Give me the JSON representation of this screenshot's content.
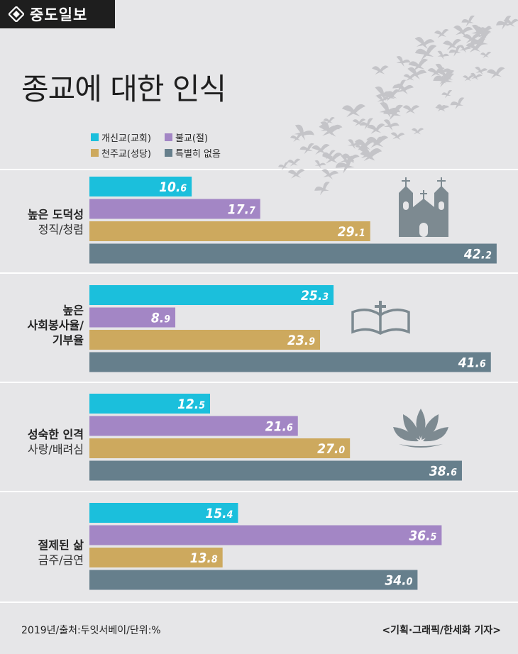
{
  "brand": {
    "logo_text": "중도일보"
  },
  "colors": {
    "protestant": "#1bbfdc",
    "buddhist": "#a386c5",
    "catholic": "#cda95e",
    "none": "#667f8c",
    "birds": "#c4c4c8",
    "icons": "#7d8a91"
  },
  "chart_data": {
    "type": "bar",
    "orientation": "horizontal",
    "title": "종교에 대한 인식",
    "legend": [
      {
        "name": "개신교(교회)",
        "color": "#1bbfdc"
      },
      {
        "name": "불교(절)",
        "color": "#a386c5"
      },
      {
        "name": "천주교(성당)",
        "color": "#cda95e"
      },
      {
        "name": "특별히 없음",
        "color": "#667f8c"
      }
    ],
    "categories": [
      {
        "main": [
          "높은 도덕성"
        ],
        "sub": "정직/청렴"
      },
      {
        "main": [
          "높은",
          "사회봉사율/",
          "기부율"
        ],
        "sub": ""
      },
      {
        "main": [
          "성숙한 인격"
        ],
        "sub": "사랑/배려심"
      },
      {
        "main": [
          "절제된 삶"
        ],
        "sub": "금주/금연"
      }
    ],
    "series": [
      {
        "name": "개신교(교회)",
        "values": [
          10.6,
          25.3,
          12.5,
          15.4
        ],
        "labels": [
          "10.6",
          "25.3",
          "12.5",
          "15.4"
        ]
      },
      {
        "name": "불교(절)",
        "values": [
          17.7,
          8.9,
          21.6,
          36.5
        ],
        "labels": [
          "17.7",
          "8.9",
          "21.6",
          "36.5"
        ]
      },
      {
        "name": "천주교(성당)",
        "values": [
          29.1,
          23.9,
          27.0,
          13.8
        ],
        "labels": [
          "29.1",
          "23.9",
          "27.0",
          "13.8"
        ]
      },
      {
        "name": "특별히 없음",
        "values": [
          42.2,
          41.6,
          38.6,
          34.0
        ],
        "labels": [
          "42.2",
          "41.6",
          "38.6",
          "34.0"
        ]
      }
    ],
    "unit": "%"
  },
  "footer": {
    "source": "2019년/출처:두잇서베이/단위:%",
    "credit": "<기획·그래픽/한세화 기자>"
  }
}
